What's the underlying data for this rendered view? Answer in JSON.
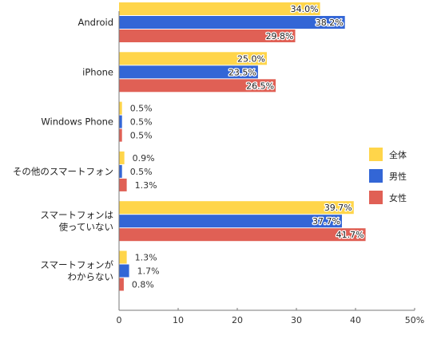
{
  "chart_data": {
    "type": "bar",
    "orientation": "horizontal",
    "categories": [
      [
        "Android"
      ],
      [
        "iPhone"
      ],
      [
        "Windows Phone"
      ],
      [
        "その他のスマートフォン"
      ],
      [
        "スマートフォンは",
        "使っていない"
      ],
      [
        "スマートフォンが",
        "わからない"
      ]
    ],
    "series": [
      {
        "name": "全体",
        "color": "#FFD54A",
        "values": [
          34.0,
          25.0,
          0.5,
          0.9,
          39.7,
          1.3
        ],
        "labels": [
          "34.0%",
          "25.0%",
          "0.5%",
          "0.9%",
          "39.7%",
          "1.3%"
        ]
      },
      {
        "name": "男性",
        "color": "#3366D6",
        "values": [
          38.2,
          23.5,
          0.5,
          0.5,
          37.7,
          1.7
        ],
        "labels": [
          "38.2%",
          "23.5%",
          "0.5%",
          "0.5%",
          "37.7%",
          "1.7%"
        ]
      },
      {
        "name": "女性",
        "color": "#E06055",
        "values": [
          29.8,
          26.5,
          0.5,
          1.3,
          41.7,
          0.8
        ],
        "labels": [
          "29.8%",
          "26.5%",
          "0.5%",
          "1.3%",
          "41.7%",
          "0.8%"
        ]
      }
    ],
    "xlim": [
      0,
      50
    ],
    "xticks": [
      0,
      10,
      20,
      30,
      40,
      50
    ],
    "xtick_labels": [
      "0",
      "10",
      "20",
      "30",
      "40",
      "50%"
    ],
    "grid": false,
    "legend": "right"
  }
}
